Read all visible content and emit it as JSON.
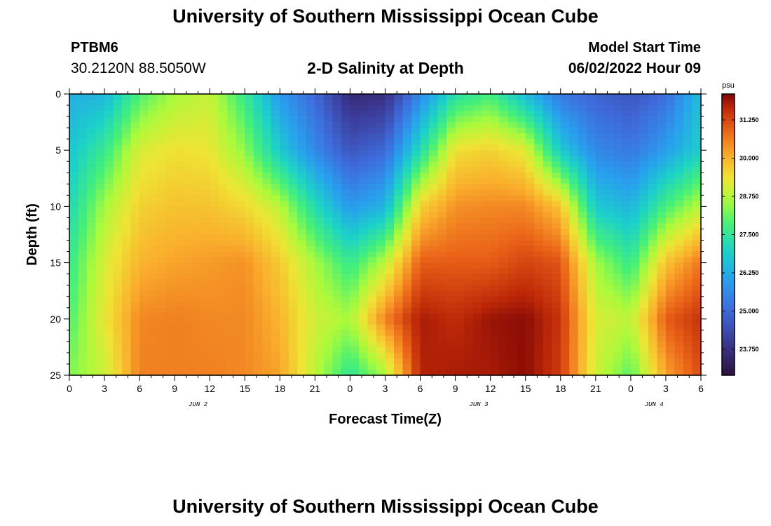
{
  "header": {
    "title": "University of Southern Mississippi Ocean Cube",
    "station": "PTBM6",
    "coords": "30.2120N  88.5050W",
    "plot_title": "2-D Salinity at Depth",
    "model_label": "Model Start Time",
    "model_time": "06/02/2022 Hour 09"
  },
  "footer": {
    "title": "University of Southern Mississippi Ocean Cube"
  },
  "chart_data": {
    "type": "heatmap",
    "title": "2-D Salinity at Depth",
    "xlabel": "Forecast Time(Z)",
    "ylabel": "Depth (ft)",
    "x_ticks": [
      "0",
      "3",
      "6",
      "9",
      "12",
      "15",
      "18",
      "21",
      "0",
      "3",
      "6",
      "9",
      "12",
      "15",
      "18",
      "21",
      "0",
      "3",
      "6"
    ],
    "x_range_hours": [
      0,
      54
    ],
    "day_labels": [
      {
        "label": "JUN 2",
        "hour": 11
      },
      {
        "label": "JUN 3",
        "hour": 35
      },
      {
        "label": "JUN 4",
        "hour": 50
      }
    ],
    "y_ticks": [
      0,
      5,
      10,
      15,
      20,
      25
    ],
    "y_range": [
      0,
      25
    ],
    "y_inverted": true,
    "colorbar": {
      "unit": "psu",
      "range": [
        22.9,
        32.1
      ],
      "tick_values": [
        31.25,
        30.0,
        28.75,
        27.5,
        26.25,
        25.0,
        23.75
      ],
      "tick_labels": [
        "31.250",
        "30.000",
        "28.750",
        "27.500",
        "26.250",
        "25.000",
        "23.750"
      ]
    },
    "salinity_psu": {
      "hours": [
        0,
        3,
        6,
        9,
        12,
        15,
        18,
        21,
        24,
        27,
        30,
        33,
        36,
        39,
        42,
        45,
        48,
        51,
        54
      ],
      "depths_ft": [
        0,
        5,
        10,
        15,
        20,
        25
      ],
      "values": [
        [
          26.3,
          26.4,
          27.9,
          28.6,
          28.9,
          27.6,
          25.9,
          25.0,
          23.6,
          23.7,
          25.6,
          27.3,
          27.8,
          26.5,
          25.3,
          24.9,
          24.6,
          25.1,
          26.6
        ],
        [
          26.7,
          27.6,
          29.1,
          29.4,
          29.3,
          28.4,
          26.8,
          25.6,
          24.6,
          25.0,
          27.2,
          29.4,
          29.6,
          29.2,
          26.8,
          25.6,
          25.3,
          26.0,
          26.9
        ],
        [
          27.1,
          28.6,
          29.6,
          29.8,
          29.8,
          29.5,
          28.8,
          27.2,
          25.9,
          26.4,
          29.6,
          30.4,
          30.5,
          30.5,
          29.8,
          26.8,
          26.4,
          27.8,
          28.8
        ],
        [
          27.6,
          29.1,
          30.0,
          30.2,
          30.3,
          30.4,
          29.7,
          28.6,
          27.6,
          28.8,
          31.0,
          31.0,
          31.0,
          31.3,
          31.1,
          28.6,
          27.6,
          29.8,
          30.7
        ],
        [
          27.9,
          29.3,
          30.5,
          30.6,
          30.5,
          30.5,
          30.0,
          29.0,
          28.6,
          30.6,
          31.8,
          31.6,
          31.9,
          32.0,
          31.5,
          29.1,
          28.8,
          31.0,
          31.5
        ],
        [
          28.3,
          28.9,
          30.6,
          30.6,
          30.6,
          30.5,
          30.2,
          28.8,
          27.5,
          28.6,
          31.7,
          31.8,
          31.8,
          32.0,
          31.4,
          29.0,
          28.0,
          30.2,
          31.2
        ]
      ]
    }
  }
}
